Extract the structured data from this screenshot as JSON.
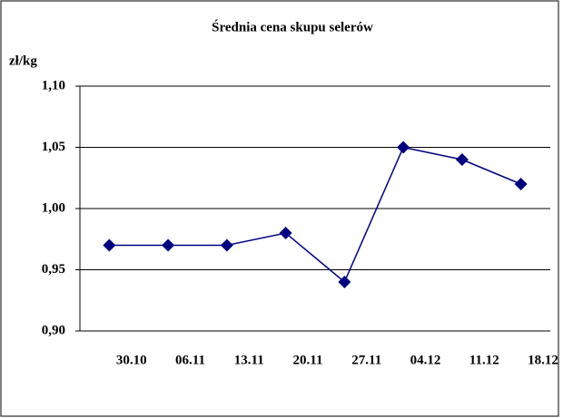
{
  "chart_data": {
    "type": "line",
    "title": "Średnia cena skupu selerów",
    "y_label": "zł/kg",
    "categories": [
      "30.10",
      "06.11",
      "13.11",
      "20.11",
      "27.11",
      "04.12",
      "11.12",
      "18.12"
    ],
    "series": [
      {
        "color": "#000080",
        "values": [
          0.97,
          0.97,
          0.97,
          0.98,
          0.94,
          1.05,
          1.04,
          1.02
        ]
      }
    ],
    "ylim": [
      0.9,
      1.1
    ],
    "yticks": [
      {
        "value": 0.9,
        "label": "0,90"
      },
      {
        "value": 0.95,
        "label": "0,95"
      },
      {
        "value": 1.0,
        "label": "1,00"
      },
      {
        "value": 1.05,
        "label": "1,05"
      },
      {
        "value": 1.1,
        "label": "1,10"
      }
    ],
    "grid": true
  }
}
